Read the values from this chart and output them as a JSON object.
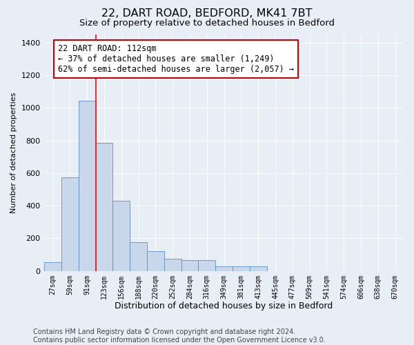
{
  "title1": "22, DART ROAD, BEDFORD, MK41 7BT",
  "title2": "Size of property relative to detached houses in Bedford",
  "xlabel": "Distribution of detached houses by size in Bedford",
  "ylabel": "Number of detached properties",
  "categories": [
    "27sqm",
    "59sqm",
    "91sqm",
    "123sqm",
    "156sqm",
    "188sqm",
    "220sqm",
    "252sqm",
    "284sqm",
    "316sqm",
    "349sqm",
    "381sqm",
    "413sqm",
    "445sqm",
    "477sqm",
    "509sqm",
    "541sqm",
    "574sqm",
    "606sqm",
    "638sqm",
    "670sqm"
  ],
  "values": [
    55,
    575,
    1045,
    785,
    430,
    175,
    120,
    75,
    65,
    65,
    30,
    30,
    30,
    0,
    0,
    0,
    0,
    0,
    0,
    0,
    0
  ],
  "bar_color": "#c8d8ea",
  "bar_edge_color": "#5b8dc8",
  "red_line_x": 2.5,
  "annotation_text": "22 DART ROAD: 112sqm\n← 37% of detached houses are smaller (1,249)\n62% of semi-detached houses are larger (2,057) →",
  "annotation_box_color": "#ffffff",
  "annotation_box_edge_color": "#cc0000",
  "ylim": [
    0,
    1450
  ],
  "yticks": [
    0,
    200,
    400,
    600,
    800,
    1000,
    1200,
    1400
  ],
  "bg_color": "#e8eef6",
  "grid_color": "#ffffff",
  "footer_text": "Contains HM Land Registry data © Crown copyright and database right 2024.\nContains public sector information licensed under the Open Government Licence v3.0.",
  "title1_fontsize": 11.5,
  "title2_fontsize": 9.5,
  "xlabel_fontsize": 9,
  "ylabel_fontsize": 8,
  "annotation_fontsize": 8.5,
  "footer_fontsize": 7
}
